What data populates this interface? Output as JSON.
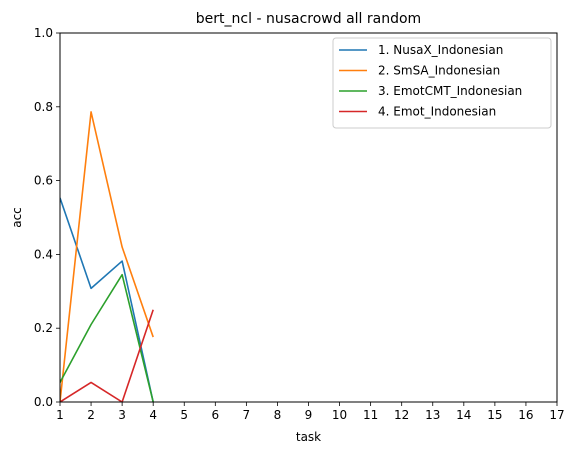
{
  "chart_data": {
    "type": "line",
    "title": "bert_ncl - nusacrowd all random",
    "xlabel": "task",
    "ylabel": "acc",
    "xlim": [
      1,
      17
    ],
    "ylim": [
      0,
      1
    ],
    "x_ticks": [
      "1",
      "2",
      "3",
      "4",
      "5",
      "6",
      "7",
      "8",
      "9",
      "10",
      "11",
      "12",
      "13",
      "14",
      "15",
      "16",
      "17"
    ],
    "y_ticks": [
      "0.0",
      "0.2",
      "0.4",
      "0.6",
      "0.8",
      "1.0"
    ],
    "grid": false,
    "legend_position": "top-right",
    "series": [
      {
        "name": "1. NusaX_Indonesian",
        "color": "#1f77b4",
        "x": [
          1,
          2,
          3,
          4
        ],
        "values": [
          0.553,
          0.308,
          0.382,
          0.0
        ]
      },
      {
        "name": "2. SmSA_Indonesian",
        "color": "#ff7f0e",
        "x": [
          1,
          2,
          3,
          4
        ],
        "values": [
          0.0,
          0.786,
          0.42,
          0.176
        ]
      },
      {
        "name": "3. EmotCMT_Indonesian",
        "color": "#2ca02c",
        "x": [
          1,
          2,
          3,
          4
        ],
        "values": [
          0.053,
          0.21,
          0.345,
          0.0
        ]
      },
      {
        "name": "4. Emot_Indonesian",
        "color": "#d62728",
        "x": [
          1,
          2,
          3,
          4
        ],
        "values": [
          0.0,
          0.053,
          0.0,
          0.25
        ]
      }
    ]
  }
}
